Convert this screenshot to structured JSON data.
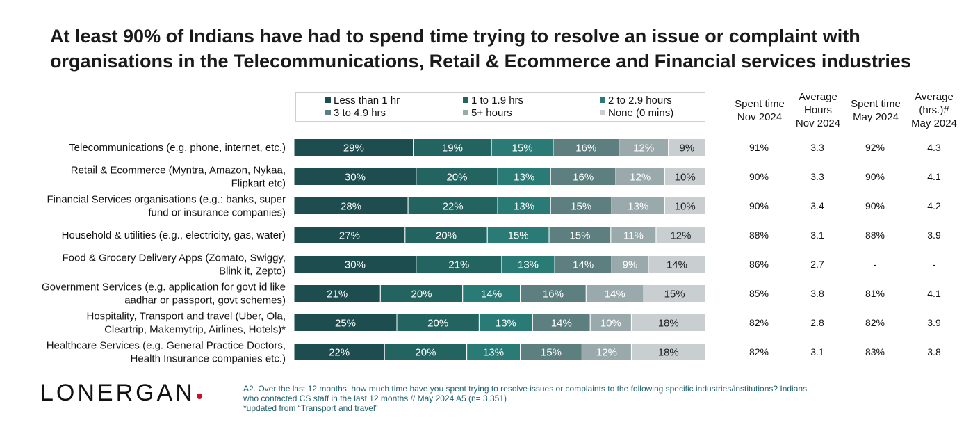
{
  "title": "At least 90% of Indians have had to spend time trying to resolve an issue or complaint with organisations in the Telecommunications, Retail & Ecommerce and Financial services industries",
  "colors": {
    "lt1": "#1d4d4f",
    "h1to19": "#236461",
    "h2to29": "#2a7a76",
    "h3to49": "#5e7f80",
    "h5plus": "#9aa9ab",
    "none": "#c9cfd0"
  },
  "legend": [
    {
      "label": "Less than 1 hr",
      "color": "#1d4d4f"
    },
    {
      "label": "1 to 1.9 hrs",
      "color": "#236461"
    },
    {
      "label": "2 to 2.9 hours",
      "color": "#2a7a76"
    },
    {
      "label": "3 to 4.9 hrs",
      "color": "#5e7f80"
    },
    {
      "label": "5+ hours",
      "color": "#9aa9ab"
    },
    {
      "label": "None (0 mins)",
      "color": "#c9cfd0"
    }
  ],
  "columns": {
    "spent_nov": "Spent time\nNov 2024",
    "avg_nov": "Average\nHours\nNov 2024",
    "spent_may": "Spent time\nMay 2024",
    "avg_may": "Average\n(hrs.)#\nMay 2024"
  },
  "chart_data": {
    "type": "bar",
    "orientation": "horizontal-stacked-100",
    "categories": [
      "Telecommunications (e.g, phone, internet, etc.)",
      "Retail & Ecommerce (Myntra, Amazon, Nykaa,\nFlipkart etc)",
      "Financial Services organisations (e.g.: banks, super\nfund or insurance companies)",
      "Household & utilities (e.g., electricity, gas, water)",
      "Food & Grocery Delivery Apps (Zomato, Swiggy,\nBlink it, Zepto)",
      "Government Services (e.g. application for govt id like\naadhar or passport, govt schemes)",
      "Hospitality, Transport and travel (Uber, Ola,\nCleartrip, Makemytrip, Airlines, Hotels)*",
      "Healthcare Services (e.g. General Practice Doctors,\nHealth Insurance companies etc.)"
    ],
    "series": [
      {
        "name": "Less than 1 hr",
        "values": [
          29,
          30,
          28,
          27,
          30,
          21,
          25,
          22
        ]
      },
      {
        "name": "1 to 1.9 hrs",
        "values": [
          19,
          20,
          22,
          20,
          21,
          20,
          20,
          20
        ]
      },
      {
        "name": "2 to 2.9 hours",
        "values": [
          15,
          13,
          13,
          15,
          13,
          14,
          13,
          13
        ]
      },
      {
        "name": "3 to 4.9 hrs",
        "values": [
          16,
          16,
          15,
          15,
          14,
          16,
          14,
          15
        ]
      },
      {
        "name": "5+ hours",
        "values": [
          12,
          12,
          13,
          11,
          9,
          14,
          10,
          12
        ]
      },
      {
        "name": "None (0 mins)",
        "values": [
          9,
          10,
          10,
          12,
          14,
          15,
          18,
          18
        ]
      }
    ],
    "label_suffix": "%",
    "table": {
      "spent_nov": [
        "91%",
        "90%",
        "90%",
        "88%",
        "86%",
        "85%",
        "82%",
        "82%"
      ],
      "avg_nov": [
        "3.3",
        "3.3",
        "3.4",
        "3.1",
        "2.7",
        "3.8",
        "2.8",
        "3.1"
      ],
      "spent_may": [
        "92%",
        "90%",
        "90%",
        "88%",
        "-",
        "81%",
        "82%",
        "83%"
      ],
      "avg_may": [
        "4.3",
        "4.1",
        "4.2",
        "3.9",
        "-",
        "4.1",
        "3.9",
        "3.8"
      ]
    }
  },
  "logo": "LONERGAN",
  "footnote": {
    "line1": "A2. Over the last 12 months, how much time have you spent trying to resolve issues or complaints to the following specific industries/institutions? Indians",
    "line2": "who contacted CS staff in the last 12 months // May 2024 A5 (n= 3,351)",
    "line3": "*updated from “Transport and travel”"
  }
}
